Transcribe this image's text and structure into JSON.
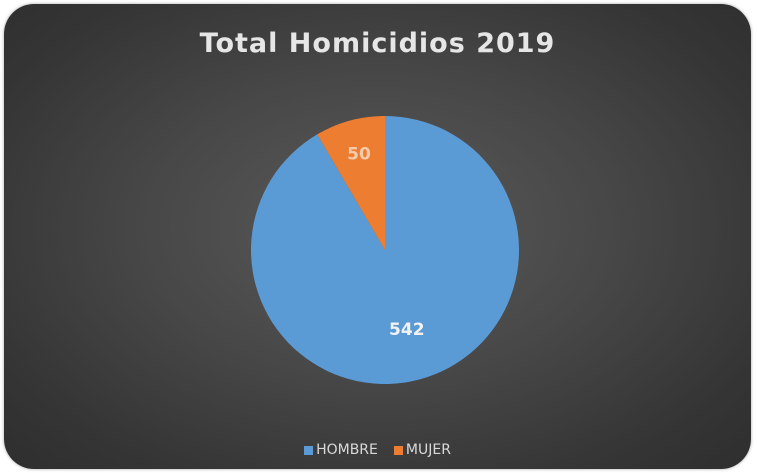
{
  "chart_data": {
    "type": "pie",
    "title": "Total Homicidios 2019",
    "categories": [
      "HOMBRE",
      "MUJER"
    ],
    "values": [
      542,
      50
    ],
    "data_labels": [
      "542",
      "50"
    ],
    "colors": [
      "#5b9bd5",
      "#ed7d31"
    ],
    "label_colors": [
      "#f2f2f2",
      "#f8cbad"
    ],
    "legend": "bottom"
  }
}
